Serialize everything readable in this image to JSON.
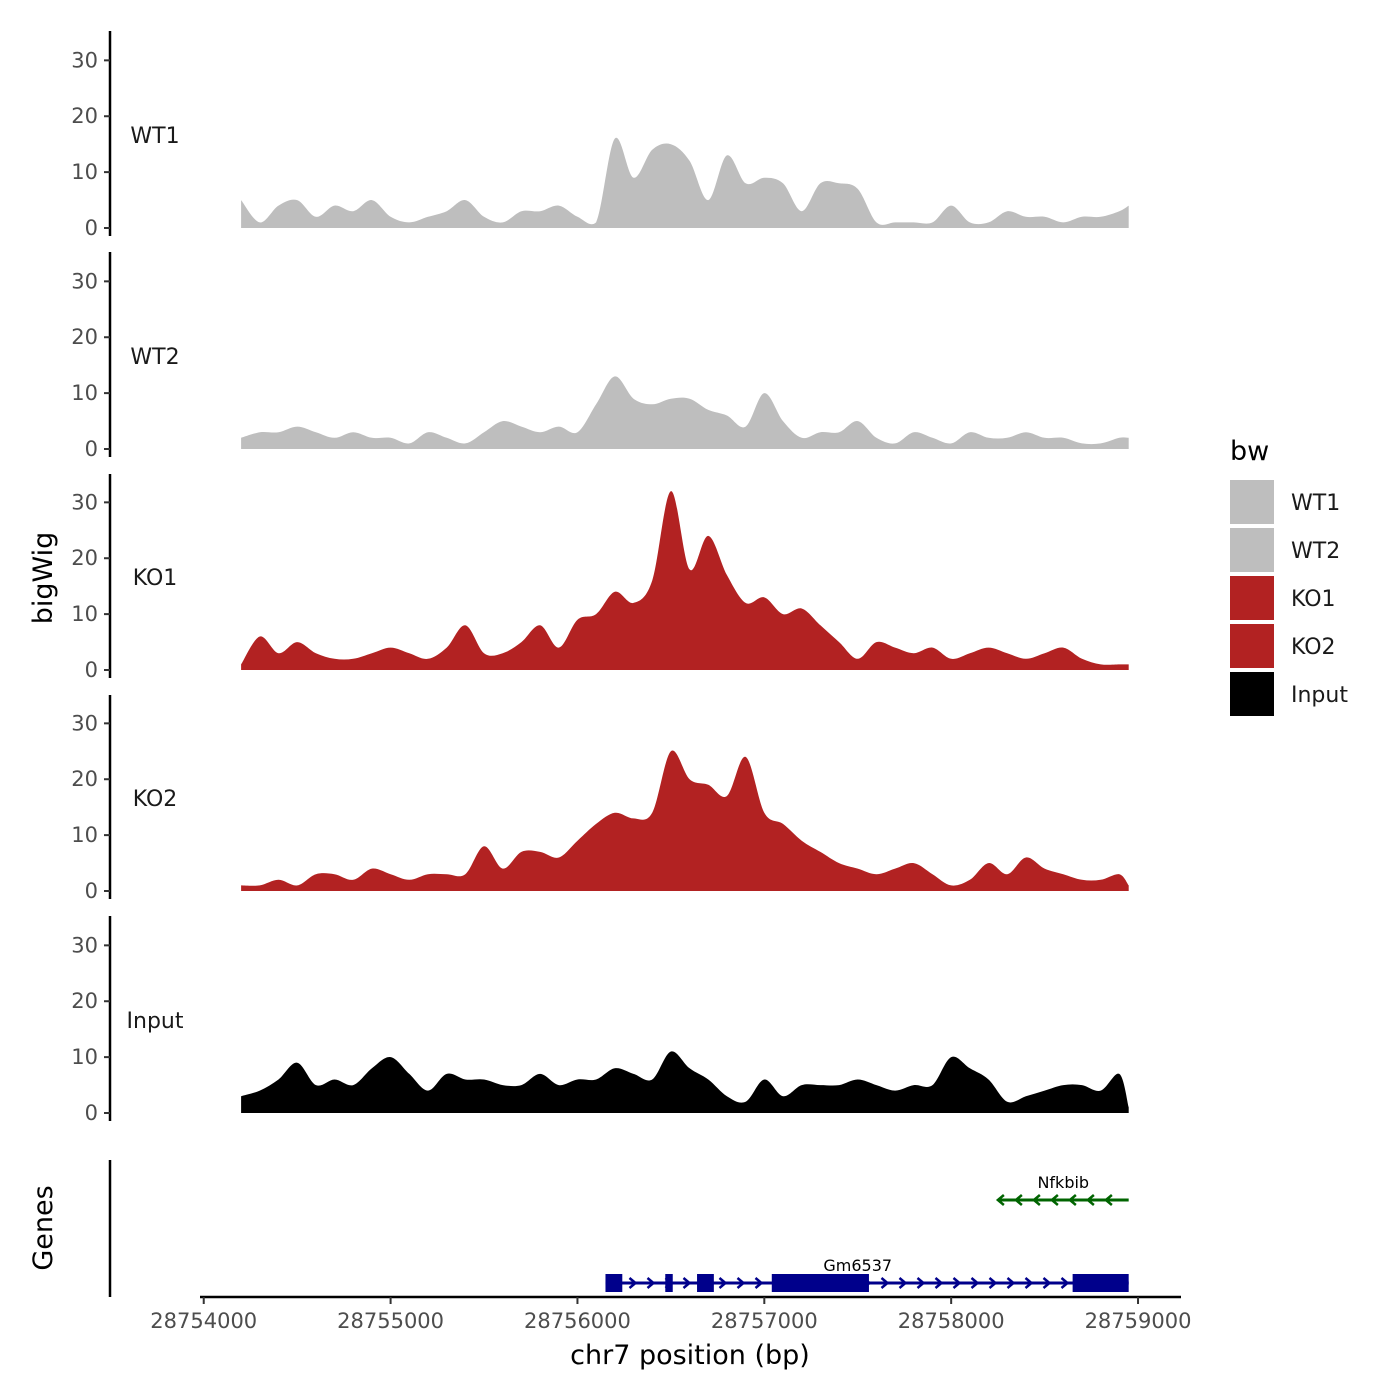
{
  "chart_data": {
    "type": "area",
    "title": "",
    "ylabel": "bigWig",
    "genes_label": "Genes",
    "xlabel": "chr7 position (bp)",
    "xlim": [
      28753980,
      28759230
    ],
    "ylim": [
      0,
      34
    ],
    "y_ticks": [
      0,
      10,
      20,
      30
    ],
    "x_ticks": [
      {
        "value": 28754000,
        "label": "28754000"
      },
      {
        "value": 28755000,
        "label": "28755000"
      },
      {
        "value": 28756000,
        "label": "28756000"
      },
      {
        "value": 28757000,
        "label": "28757000"
      },
      {
        "value": 28758000,
        "label": "28758000"
      },
      {
        "value": 28759000,
        "label": "28759000"
      }
    ],
    "legend": {
      "title": "bw",
      "position": "right",
      "entries": [
        {
          "label": "WT1",
          "color": "#bebebe"
        },
        {
          "label": "WT2",
          "color": "#bebebe"
        },
        {
          "label": "KO1",
          "color": "#b22222"
        },
        {
          "label": "KO2",
          "color": "#b22222"
        },
        {
          "label": "Input",
          "color": "#000000"
        }
      ]
    },
    "x_positions": [
      28754200,
      28754300,
      28754400,
      28754500,
      28754600,
      28754700,
      28754800,
      28754900,
      28755000,
      28755100,
      28755200,
      28755300,
      28755400,
      28755500,
      28755600,
      28755700,
      28755800,
      28755900,
      28756000,
      28756100,
      28756200,
      28756300,
      28756400,
      28756500,
      28756600,
      28756700,
      28756800,
      28756900,
      28757000,
      28757100,
      28757200,
      28757300,
      28757400,
      28757500,
      28757600,
      28757700,
      28757800,
      28757900,
      28758000,
      28758100,
      28758200,
      28758300,
      28758400,
      28758500,
      28758600,
      28758700,
      28758800,
      28758900,
      28758950
    ],
    "series": [
      {
        "name": "WT1",
        "color": "#bebebe",
        "values": [
          5,
          1,
          4,
          5,
          2,
          4,
          3,
          5,
          2,
          1,
          2,
          3,
          5,
          2,
          1,
          3,
          3,
          4,
          2,
          1,
          16,
          9,
          14,
          15,
          12,
          5,
          13,
          8,
          9,
          8,
          3,
          8,
          8,
          7,
          1,
          1,
          1,
          1,
          4,
          1,
          1,
          3,
          2,
          2,
          1,
          2,
          2,
          3,
          4
        ]
      },
      {
        "name": "WT2",
        "color": "#bebebe",
        "values": [
          2,
          3,
          3,
          4,
          3,
          2,
          3,
          2,
          2,
          1,
          3,
          2,
          1,
          3,
          5,
          4,
          3,
          4,
          3,
          8,
          13,
          9,
          8,
          9,
          9,
          7,
          6,
          4,
          10,
          5,
          2,
          3,
          3,
          5,
          2,
          1,
          3,
          2,
          1,
          3,
          2,
          2,
          3,
          2,
          2,
          1,
          1,
          2,
          2
        ]
      },
      {
        "name": "KO1",
        "color": "#b22222",
        "values": [
          1,
          6,
          3,
          5,
          3,
          2,
          2,
          3,
          4,
          3,
          2,
          4,
          8,
          3,
          3,
          5,
          8,
          4,
          9,
          10,
          14,
          12,
          16,
          32,
          18,
          24,
          17,
          12,
          13,
          10,
          11,
          8,
          5,
          2,
          5,
          4,
          3,
          4,
          2,
          3,
          4,
          3,
          2,
          3,
          4,
          2,
          1,
          1,
          1
        ]
      },
      {
        "name": "KO2",
        "color": "#b22222",
        "values": [
          1,
          1,
          2,
          1,
          3,
          3,
          2,
          4,
          3,
          2,
          3,
          3,
          3,
          8,
          4,
          7,
          7,
          6,
          9,
          12,
          14,
          13,
          14,
          25,
          20,
          19,
          17,
          24,
          14,
          12,
          9,
          7,
          5,
          4,
          3,
          4,
          5,
          3,
          1,
          2,
          5,
          3,
          6,
          4,
          3,
          2,
          2,
          3,
          1
        ]
      },
      {
        "name": "Input",
        "color": "#000000",
        "values": [
          3,
          4,
          6,
          9,
          5,
          6,
          5,
          8,
          10,
          7,
          4,
          7,
          6,
          6,
          5,
          5,
          7,
          5,
          6,
          6,
          8,
          7,
          6,
          11,
          8,
          6,
          3,
          2,
          6,
          3,
          5,
          5,
          5,
          6,
          5,
          4,
          5,
          5,
          10,
          8,
          6,
          2,
          3,
          4,
          5,
          5,
          4,
          7,
          1
        ]
      }
    ],
    "genes": [
      {
        "name": "Gm6537",
        "color": "#00008b",
        "strand": "+",
        "start": 28756150,
        "end": 28758950,
        "exons": [
          [
            28756150,
            28756240
          ],
          [
            28756470,
            28756510
          ],
          [
            28756640,
            28756730
          ],
          [
            28757040,
            28757560
          ],
          [
            28758650,
            28758950
          ]
        ]
      },
      {
        "name": "Nfkbib",
        "color": "#006400",
        "strand": "-",
        "start": 28758250,
        "end": 28758950,
        "exons": []
      }
    ]
  }
}
